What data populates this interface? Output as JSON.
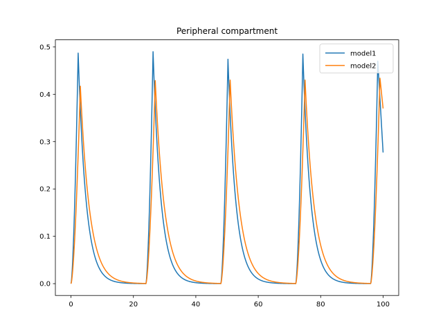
{
  "chart_data": {
    "type": "line",
    "title": "Peripheral compartment",
    "xlabel": "",
    "ylabel": "",
    "xlim": [
      -5,
      105
    ],
    "ylim": [
      -0.025,
      0.515
    ],
    "xticks": [
      0,
      20,
      40,
      60,
      80,
      100
    ],
    "yticks": [
      0.0,
      0.1,
      0.2,
      0.3,
      0.4,
      0.5
    ],
    "xtick_labels": [
      "0",
      "20",
      "40",
      "60",
      "80",
      "100"
    ],
    "ytick_labels": [
      "0.0",
      "0.1",
      "0.2",
      "0.3",
      "0.4",
      "0.5"
    ],
    "grid": false,
    "legend": {
      "position": "top-right"
    },
    "series": [
      {
        "name": "model1",
        "color": "#1f77b4",
        "doses_at": [
          0,
          24,
          48,
          72,
          96
        ],
        "peak_times": [
          2.3,
          26.3,
          50.3,
          74.3,
          98.3
        ],
        "peaks": [
          0.487,
          0.49,
          0.474,
          0.485,
          0.47
        ],
        "decay_time_constant": 2.5,
        "end": {
          "x": 100,
          "y": 0.277
        }
      },
      {
        "name": "model2",
        "color": "#ff7f0e",
        "doses_at": [
          0,
          24,
          48,
          72,
          96
        ],
        "peak_times": [
          3.0,
          27.0,
          51.0,
          75.0,
          99.0
        ],
        "peaks": [
          0.417,
          0.429,
          0.43,
          0.43,
          0.434
        ],
        "decay_time_constant": 3.0,
        "end": {
          "x": 100,
          "y": 0.37
        }
      }
    ]
  }
}
